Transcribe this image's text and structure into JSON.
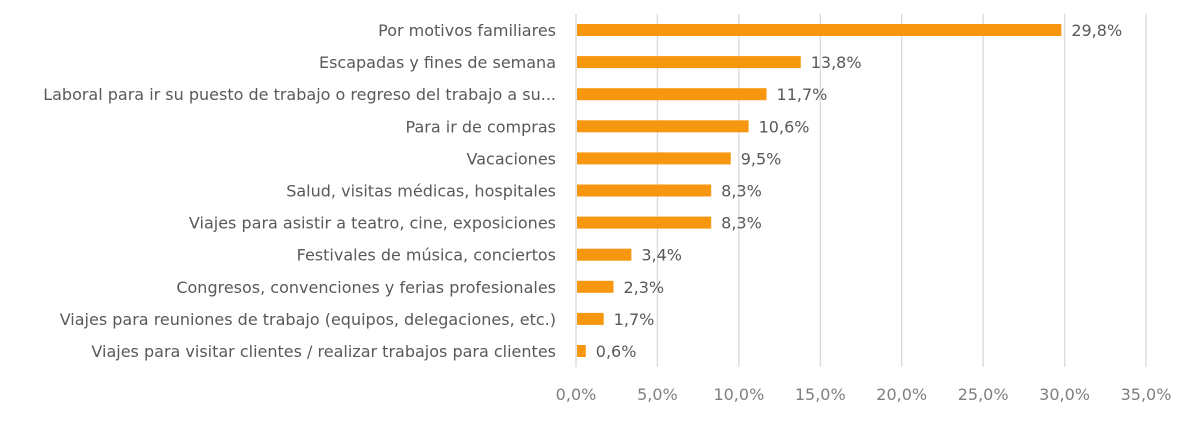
{
  "chart_data": {
    "type": "bar",
    "orientation": "horizontal",
    "categories": [
      "Por motivos familiares",
      "Escapadas y fines de semana",
      "Laboral para ir su puesto de trabajo o regreso del trabajo a su...",
      "Para ir de compras",
      "Vacaciones",
      "Salud, visitas médicas, hospitales",
      "Viajes para asistir a teatro, cine, exposiciones",
      "Festivales de música, conciertos",
      "Congresos, convenciones y ferias profesionales",
      "Viajes para reuniones de trabajo (equipos, delegaciones, etc.)",
      "Viajes para visitar clientes / realizar trabajos para clientes"
    ],
    "values": [
      29.8,
      13.8,
      11.7,
      10.6,
      9.5,
      8.3,
      8.3,
      3.4,
      2.3,
      1.7,
      0.6
    ],
    "data_labels": [
      "29,8%",
      "13,8%",
      "11,7%",
      "10,6%",
      "9,5%",
      "8,3%",
      "8,3%",
      "3,4%",
      "2,3%",
      "1,7%",
      "0,6%"
    ],
    "xlim": [
      0,
      35
    ],
    "x_ticks": [
      0,
      5,
      10,
      15,
      20,
      25,
      30,
      35
    ],
    "x_tick_labels": [
      "0,0%",
      "5,0%",
      "10,0%",
      "15,0%",
      "20,0%",
      "25,0%",
      "30,0%",
      "35,0%"
    ],
    "grid": "vertical",
    "title": "",
    "xlabel": "",
    "ylabel": "",
    "colors": {
      "bar": "#F7960F",
      "grid": "#D9D9D9",
      "text": "#595959"
    }
  }
}
